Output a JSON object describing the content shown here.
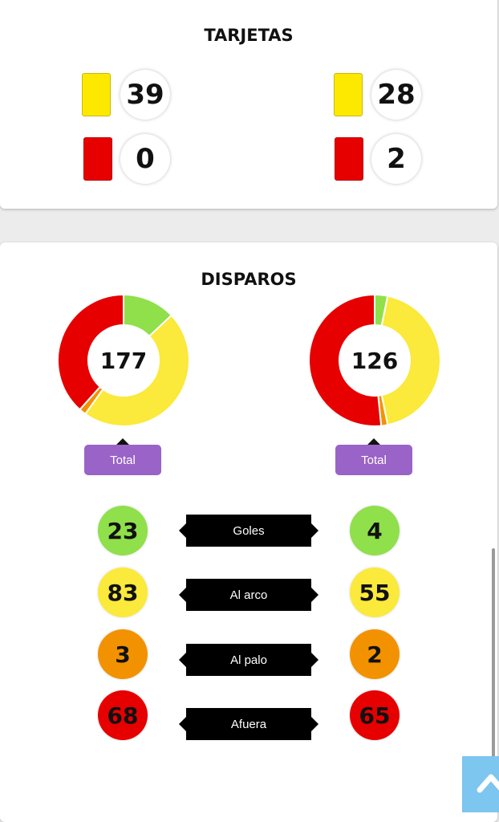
{
  "tarjetas": {
    "title": "TARJETAS",
    "home": {
      "yellow": "39",
      "red": "0"
    },
    "away": {
      "yellow": "28",
      "red": "2"
    }
  },
  "disparos": {
    "title": "DISPAROS",
    "colors": {
      "goles": "#8fe04b",
      "al_arco": "#fbe93b",
      "al_palo": "#f39200",
      "afuera": "#e60000"
    },
    "home": {
      "total": "177",
      "goles": "23",
      "al_arco": "83",
      "al_palo": "3",
      "afuera": "68"
    },
    "away": {
      "total": "126",
      "goles": "4",
      "al_arco": "55",
      "al_palo": "2",
      "afuera": "65"
    },
    "total_button_label": "Total",
    "labels": {
      "goles": "Goles",
      "al_arco": "Al arco",
      "al_palo": "Al palo",
      "afuera": "Afuera"
    }
  },
  "scroll_top_icon": "chevron-up-icon"
}
